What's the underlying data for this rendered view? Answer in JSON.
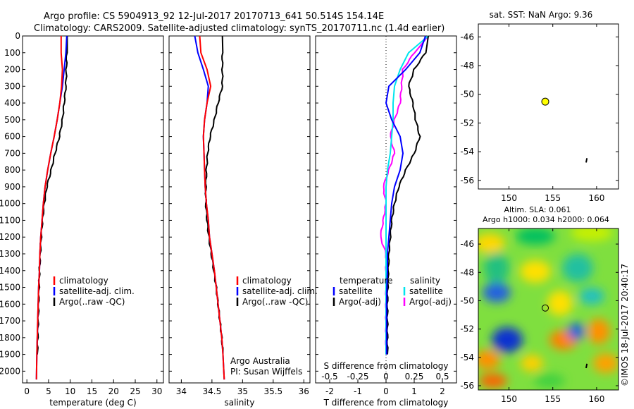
{
  "header": {
    "line1": "Argo profile: CS 5904913_92 12-Jul-2017 20170713_641 50.514S 154.14E",
    "line2": "Climatology: CARS2009. Satellite-adjusted climatology: synTS_20170711.nc (1.4d earlier)"
  },
  "colors": {
    "climatology": "#ff0000",
    "satellite": "#0000ff",
    "argo": "#000000",
    "satellite_s": "#00e5ee",
    "argo_s": "#ff00ff",
    "float_marker": "#ffff00"
  },
  "chart_data": [
    {
      "type": "line",
      "panel": "temperature",
      "xlabel": "temperature (deg C)",
      "ylabel": "",
      "xlim": [
        -1,
        31.5
      ],
      "ylim": [
        2070,
        0
      ],
      "xticks": [
        "0",
        "5",
        "10",
        "15",
        "20",
        "25",
        "30"
      ],
      "yticks": [
        "0",
        "100",
        "200",
        "300",
        "400",
        "500",
        "600",
        "700",
        "800",
        "900",
        "1000",
        "1100",
        "1200",
        "1300",
        "1400",
        "1500",
        "1600",
        "1700",
        "1800",
        "1900",
        "2000"
      ],
      "legend": [
        "climatology",
        "satellite-adj. clim.",
        "Argo(..raw -QC)"
      ],
      "series": [
        {
          "name": "climatology",
          "color": "#ff0000",
          "x": [
            7.9,
            7.9,
            8.2,
            8.0,
            7.6,
            7.0,
            6.3,
            5.5,
            4.8,
            4.2,
            3.8,
            3.5,
            3.2,
            3.0,
            2.9,
            2.7,
            2.6,
            2.5,
            2.4,
            2.3,
            2.2
          ],
          "y": [
            0,
            100,
            200,
            300,
            400,
            500,
            600,
            700,
            800,
            900,
            1000,
            1100,
            1200,
            1300,
            1400,
            1500,
            1600,
            1700,
            1800,
            1900,
            2050
          ]
        },
        {
          "name": "satellite-adj. clim.",
          "color": "#0000ff",
          "x": [
            9.2,
            9.0,
            8.6,
            8.2,
            7.6,
            7.0,
            6.3,
            5.5,
            4.8,
            4.2,
            3.8,
            3.5,
            3.2,
            3.0,
            2.9,
            2.7,
            2.6,
            2.5,
            2.4,
            2.3,
            2.2
          ],
          "y": [
            0,
            100,
            200,
            300,
            400,
            500,
            600,
            700,
            800,
            900,
            1000,
            1100,
            1200,
            1300,
            1400,
            1500,
            1600,
            1700,
            1800,
            1900,
            2050
          ]
        },
        {
          "name": "Argo(..raw -QC)",
          "color": "#000000",
          "x": [
            9.3,
            9.2,
            9.1,
            9.0,
            8.6,
            8.2,
            7.5,
            6.5,
            5.6,
            4.6,
            4.0,
            3.6,
            3.3,
            3.1,
            2.9,
            2.8,
            2.7,
            2.6,
            2.5,
            2.4
          ],
          "y": [
            0,
            100,
            200,
            300,
            400,
            500,
            600,
            700,
            800,
            900,
            1000,
            1100,
            1200,
            1300,
            1400,
            1500,
            1600,
            1700,
            1800,
            1900
          ]
        }
      ]
    },
    {
      "type": "line",
      "panel": "salinity",
      "xlabel": "salinity",
      "ylabel": "",
      "xlim": [
        33.8,
        36.1
      ],
      "ylim": [
        2070,
        0
      ],
      "xticks": [
        "34",
        "34.5",
        "35",
        "35.5",
        "36"
      ],
      "legend": [
        "climatology",
        "satellite-adj. clim.",
        "Argo(..raw -QC)"
      ],
      "annotation": [
        "Argo Australia",
        "PI: Susan Wijffels"
      ],
      "series": [
        {
          "name": "climatology",
          "color": "#ff0000",
          "x": [
            34.3,
            34.32,
            34.42,
            34.48,
            34.42,
            34.38,
            34.36,
            34.37,
            34.38,
            34.39,
            34.41,
            34.44,
            34.46,
            34.5,
            34.54,
            34.57,
            34.6,
            34.63,
            34.66,
            34.68,
            34.7
          ],
          "y": [
            0,
            100,
            200,
            300,
            400,
            500,
            600,
            700,
            800,
            900,
            1000,
            1100,
            1200,
            1300,
            1400,
            1500,
            1600,
            1700,
            1800,
            1900,
            2050
          ]
        },
        {
          "name": "satellite-adj. clim.",
          "color": "#0000ff",
          "x": [
            34.22,
            34.27,
            34.36,
            34.44,
            34.42,
            34.38,
            34.36,
            34.37,
            34.38,
            34.39,
            34.41,
            34.44,
            34.46,
            34.5,
            34.54,
            34.57,
            34.6,
            34.63,
            34.66,
            34.68,
            34.7
          ],
          "y": [
            0,
            100,
            200,
            300,
            400,
            500,
            600,
            700,
            800,
            900,
            1000,
            1100,
            1200,
            1300,
            1400,
            1500,
            1600,
            1700,
            1800,
            1900,
            2050
          ]
        },
        {
          "name": "Argo(..raw -QC)",
          "color": "#000000",
          "x": [
            34.67,
            34.67,
            34.67,
            34.67,
            34.6,
            34.54,
            34.47,
            34.43,
            34.41,
            34.4,
            34.4,
            34.42,
            34.45,
            34.49,
            34.53,
            34.57,
            34.6,
            34.63,
            34.66,
            34.68
          ],
          "y": [
            0,
            100,
            200,
            300,
            400,
            500,
            600,
            700,
            800,
            900,
            1000,
            1100,
            1200,
            1300,
            1400,
            1500,
            1600,
            1700,
            1800,
            1900
          ]
        }
      ]
    },
    {
      "type": "line",
      "panel": "difference",
      "xlabel": "T difference from climatology",
      "x2label": "S difference from climatology",
      "xlim": [
        -2.5,
        2.5
      ],
      "ylim": [
        2070,
        0
      ],
      "xticks": [
        "-2",
        "-1",
        "0",
        "1",
        "2"
      ],
      "x2ticks": [
        "-0.5",
        "-0.25",
        "0",
        "0.25",
        "0.5"
      ],
      "legend_titles": [
        "temperature",
        "salinity"
      ],
      "legend": [
        "satellite",
        "Argo(-adj)",
        "satellite",
        "Argo(-adj)"
      ],
      "series": [
        {
          "name": "satellite",
          "group": "temperature",
          "color": "#0000ff",
          "x": [
            1.4,
            1.2,
            0.7,
            0.1,
            0.0,
            0.2,
            0.5,
            0.6,
            0.5,
            0.3,
            0.2,
            0.15,
            0.1,
            0.05,
            0.05,
            0.03,
            0.02,
            0.02,
            0.02,
            0.02
          ],
          "y": [
            0,
            100,
            200,
            300,
            400,
            500,
            600,
            700,
            800,
            900,
            1000,
            1100,
            1200,
            1300,
            1400,
            1500,
            1600,
            1700,
            1800,
            1900
          ]
        },
        {
          "name": "Argo(-adj)",
          "group": "temperature",
          "color": "#000000",
          "x": [
            1.5,
            1.4,
            1.0,
            0.8,
            0.95,
            1.05,
            1.2,
            1.0,
            0.7,
            0.45,
            0.3,
            0.2,
            0.15,
            0.1,
            0.08,
            0.06,
            0.05,
            0.05,
            0.05,
            0.05
          ],
          "y": [
            0,
            100,
            200,
            300,
            400,
            500,
            600,
            700,
            800,
            900,
            1000,
            1100,
            1200,
            1300,
            1400,
            1500,
            1600,
            1700,
            1800,
            1900
          ]
        },
        {
          "name": "satellite",
          "group": "salinity",
          "color": "#00e5ee",
          "x": [
            1.5,
            0.8,
            0.5,
            0.3,
            0.25,
            0.25,
            0.2,
            0.15,
            0.05,
            0.0,
            0.0,
            0.0,
            0.0,
            0.0,
            0.0,
            0.0,
            0.0,
            0.0,
            0.0,
            0.0
          ],
          "y": [
            0,
            100,
            200,
            300,
            400,
            500,
            600,
            700,
            800,
            900,
            1000,
            1100,
            1200,
            1300,
            1400,
            1500,
            1600,
            1700,
            1800,
            1900
          ]
        },
        {
          "name": "Argo(-adj)",
          "group": "salinity",
          "color": "#ff00ff",
          "x": [
            1.5,
            1.0,
            0.6,
            0.55,
            0.5,
            0.3,
            0.15,
            0.3,
            0.1,
            -0.1,
            0.0,
            -0.1,
            -0.2,
            0.0,
            0.0,
            0.0,
            0.0,
            0.0,
            0.0,
            0.0
          ],
          "y": [
            0,
            100,
            200,
            300,
            400,
            500,
            600,
            700,
            800,
            900,
            1000,
            1100,
            1200,
            1300,
            1400,
            1500,
            1600,
            1700,
            1800,
            1900
          ]
        }
      ]
    },
    {
      "type": "scatter",
      "panel": "sst-map",
      "title": "sat. SST: NaN Argo: 9.36",
      "xlim": [
        146.5,
        162.5
      ],
      "ylim": [
        -56.6,
        -45.1
      ],
      "xticks": [
        "150",
        "155",
        "160"
      ],
      "yticks": [
        "-46",
        "-48",
        "-50",
        "-52",
        "-54",
        "-56"
      ],
      "points": [
        {
          "x": 154.14,
          "y": -50.514
        }
      ],
      "track": [
        [
          158.9,
          -54.45
        ],
        [
          158.8,
          -54.75
        ]
      ]
    },
    {
      "type": "heatmap",
      "panel": "sla-map",
      "title": "Altim. SLA: 0.061",
      "subtitle": "Argo h1000: 0.034 h2000: 0.064",
      "xlim": [
        146.5,
        162.5
      ],
      "ylim": [
        -56.3,
        -44.9
      ],
      "xticks": [
        "150",
        "155",
        "160"
      ],
      "yticks": [
        "-46",
        "-48",
        "-50",
        "-52",
        "-54",
        "-56"
      ],
      "points": [
        {
          "x": 154.14,
          "y": -50.514
        }
      ],
      "track": [
        [
          158.9,
          -54.45
        ],
        [
          158.8,
          -54.75
        ]
      ],
      "stamp": "©IMOS 18-Jul-2017 20:40:17"
    }
  ]
}
